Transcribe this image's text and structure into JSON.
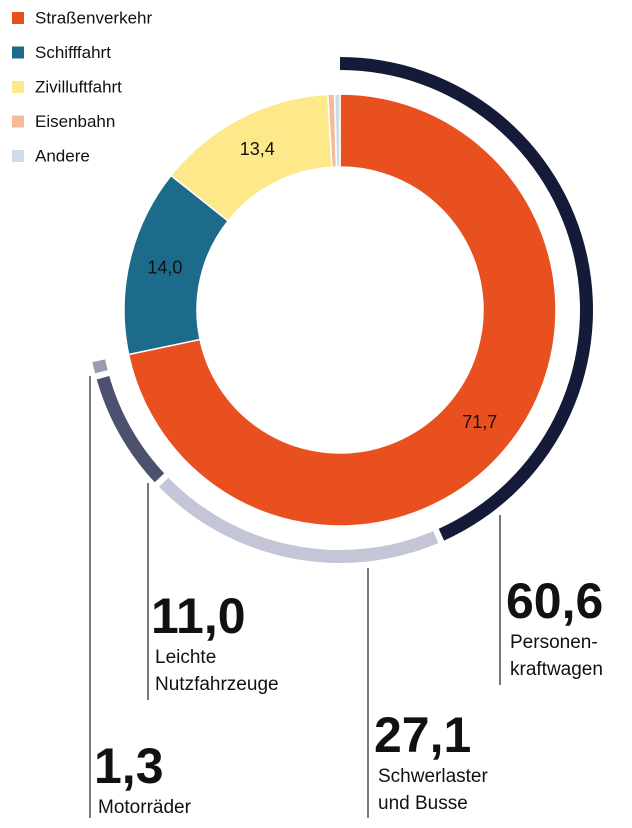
{
  "chart_data": [
    {
      "type": "pie",
      "categories": [
        "Straßenverkehr",
        "Schifffahrt",
        "Zivilluftfahrt",
        "Eisenbahn",
        "Andere"
      ],
      "values": [
        71.7,
        14.0,
        13.4,
        0.5,
        0.4
      ],
      "value_labels": [
        "71,7",
        "14,0",
        "13,4",
        null,
        null
      ],
      "colors": [
        "#e8501f",
        "#1c6b8a",
        "#fde98a",
        "#f6b99a",
        "#d0dce8"
      ],
      "label_colors": [
        "#ffffff",
        "#ffffff",
        "#222222",
        null,
        null
      ],
      "legend": "top-left"
    },
    {
      "type": "pie",
      "categories": [
        [
          "Personen-",
          "kraftwagen"
        ],
        [
          "Schwerlaster",
          "und Busse"
        ],
        [
          "Leichte",
          "Nutzfahrzeuge"
        ],
        [
          "Motorräder"
        ]
      ],
      "values": [
        60.6,
        27.1,
        11.0,
        1.3
      ],
      "value_labels": [
        "60,6",
        "27,1",
        "11,0",
        "1,3"
      ],
      "colors": [
        "#141a38",
        "#c4c5d6",
        "#4c5170",
        "#9a9cae"
      ]
    }
  ]
}
